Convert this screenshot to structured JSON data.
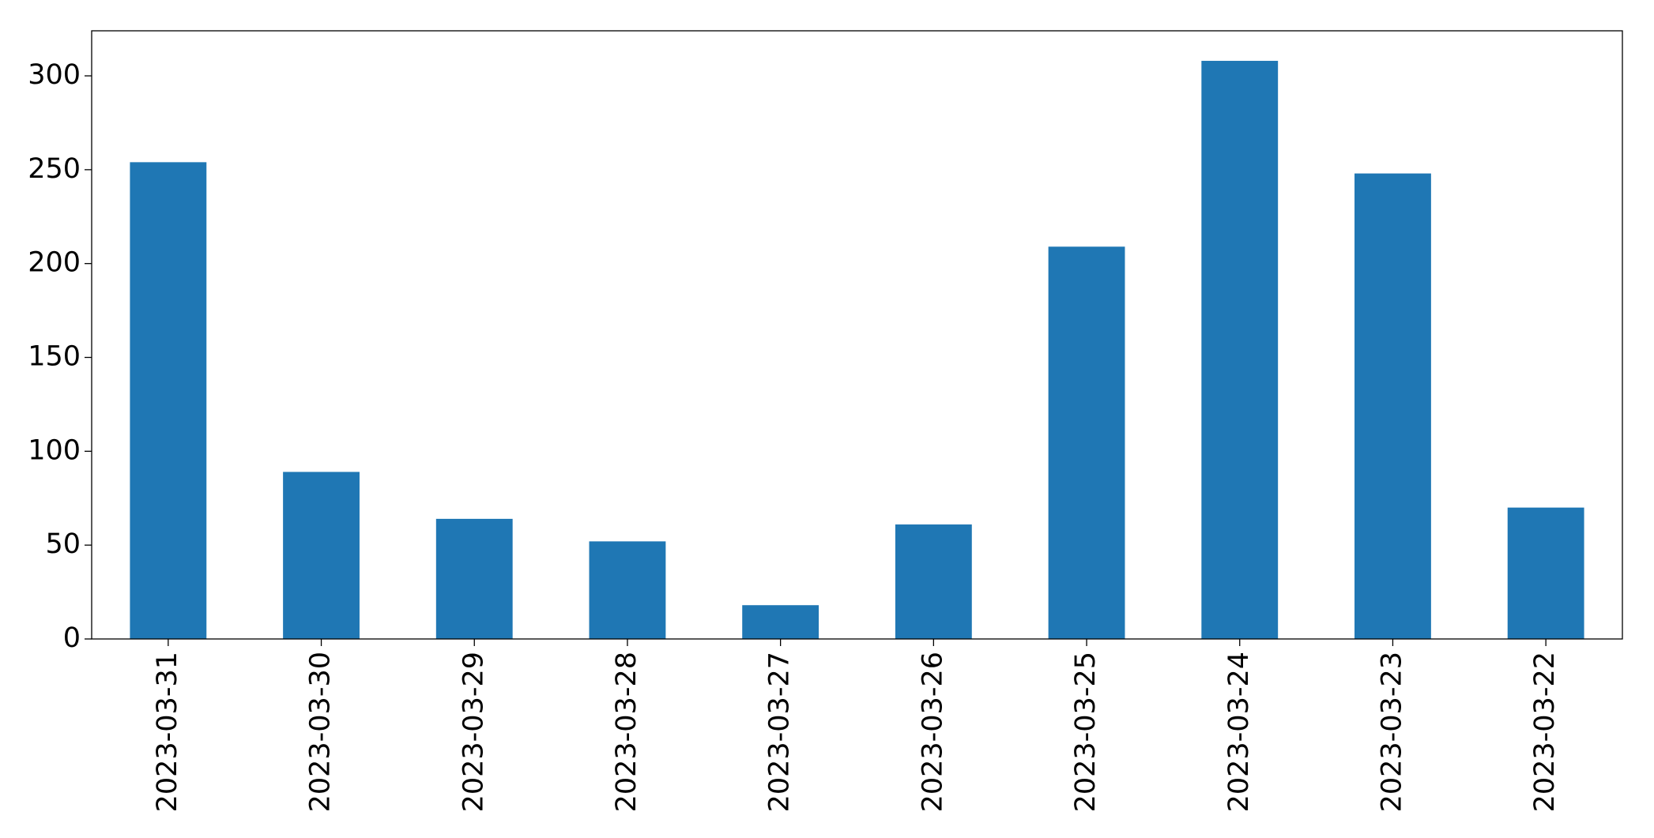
{
  "chart_data": {
    "type": "bar",
    "categories": [
      "2023-03-31",
      "2023-03-30",
      "2023-03-29",
      "2023-03-28",
      "2023-03-27",
      "2023-03-26",
      "2023-03-25",
      "2023-03-24",
      "2023-03-23",
      "2023-03-22"
    ],
    "values": [
      254,
      89,
      64,
      52,
      18,
      61,
      209,
      308,
      248,
      70
    ],
    "color": "#1f77b4",
    "ylim": [
      0,
      324
    ],
    "yticks": [
      0,
      50,
      100,
      150,
      200,
      250,
      300
    ],
    "grid": false
  }
}
